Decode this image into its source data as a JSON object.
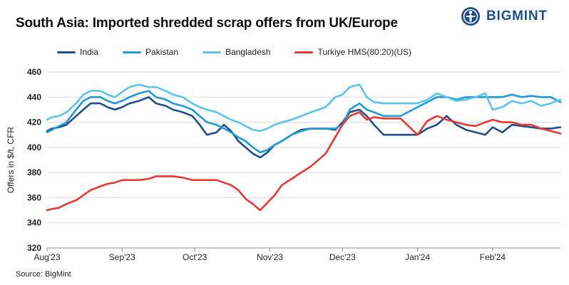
{
  "header": {
    "title": "South Asia: Imported shredded scrap offers from UK/Europe",
    "logo_text": "BIGMINT"
  },
  "footer": {
    "source": "Source: BigMint"
  },
  "colors": {
    "India": "#1f4e8c",
    "Pakistan": "#1f9bd6",
    "Bangladesh": "#5cc3ee",
    "Turkiye HMS(80:20)(US)": "#e53935",
    "brand": "#1f4e8c"
  },
  "chart_data": {
    "type": "line",
    "title": "South Asia: Imported shredded scrap offers from UK/Europe",
    "xlabel": "",
    "ylabel": "Offers in $/t, CFR",
    "ylim": [
      320,
      460
    ],
    "yticks": [
      320,
      340,
      360,
      380,
      400,
      420,
      440,
      460
    ],
    "xlim": [
      "2023-08-01",
      "2024-02-29"
    ],
    "xticks": [
      "Aug'23",
      "Sep'23",
      "Oct'23",
      "Nov'23",
      "Dec'23",
      "Jan'24",
      "Feb'24"
    ],
    "xtick_dates": [
      "2023-08-01",
      "2023-09-01",
      "2023-10-01",
      "2023-11-01",
      "2023-12-01",
      "2024-01-01",
      "2024-02-01"
    ],
    "grid": "horizontal",
    "legend": "top",
    "series": [
      {
        "name": "India",
        "color": "#1f4e8c",
        "points": [
          [
            "2023-08-01",
            413
          ],
          [
            "2023-08-03",
            415
          ],
          [
            "2023-08-06",
            416
          ],
          [
            "2023-08-09",
            418
          ],
          [
            "2023-08-13",
            425
          ],
          [
            "2023-08-16",
            430
          ],
          [
            "2023-08-19",
            435
          ],
          [
            "2023-08-23",
            435
          ],
          [
            "2023-08-26",
            432
          ],
          [
            "2023-08-29",
            430
          ],
          [
            "2023-09-01",
            432
          ],
          [
            "2023-09-04",
            435
          ],
          [
            "2023-09-08",
            437
          ],
          [
            "2023-09-12",
            440
          ],
          [
            "2023-09-15",
            435
          ],
          [
            "2023-09-19",
            433
          ],
          [
            "2023-09-22",
            430
          ],
          [
            "2023-09-26",
            428
          ],
          [
            "2023-09-30",
            425
          ],
          [
            "2023-10-03",
            418
          ],
          [
            "2023-10-06",
            410
          ],
          [
            "2023-10-10",
            412
          ],
          [
            "2023-10-13",
            418
          ],
          [
            "2023-10-16",
            413
          ],
          [
            "2023-10-19",
            405
          ],
          [
            "2023-10-22",
            400
          ],
          [
            "2023-10-25",
            395
          ],
          [
            "2023-10-28",
            392
          ],
          [
            "2023-10-31",
            396
          ],
          [
            "2023-11-03",
            402
          ],
          [
            "2023-11-06",
            405
          ],
          [
            "2023-11-10",
            410
          ],
          [
            "2023-11-14",
            414
          ],
          [
            "2023-11-18",
            415
          ],
          [
            "2023-11-24",
            415
          ],
          [
            "2023-11-28",
            414
          ],
          [
            "2023-12-01",
            420
          ],
          [
            "2023-12-04",
            428
          ],
          [
            "2023-12-08",
            430
          ],
          [
            "2023-12-11",
            425
          ],
          [
            "2023-12-14",
            418
          ],
          [
            "2023-12-18",
            410
          ],
          [
            "2023-12-25",
            410
          ],
          [
            "2024-01-01",
            410
          ],
          [
            "2024-01-05",
            415
          ],
          [
            "2024-01-09",
            418
          ],
          [
            "2024-01-13",
            425
          ],
          [
            "2024-01-17",
            418
          ],
          [
            "2024-01-21",
            414
          ],
          [
            "2024-01-25",
            412
          ],
          [
            "2024-01-29",
            410
          ],
          [
            "2024-02-01",
            416
          ],
          [
            "2024-02-05",
            412
          ],
          [
            "2024-02-09",
            418
          ],
          [
            "2024-02-13",
            417
          ],
          [
            "2024-02-17",
            416
          ],
          [
            "2024-02-21",
            415
          ],
          [
            "2024-02-25",
            415
          ],
          [
            "2024-02-29",
            416
          ]
        ]
      },
      {
        "name": "Pakistan",
        "color": "#1f9bd6",
        "points": [
          [
            "2023-08-01",
            412
          ],
          [
            "2023-08-03",
            414
          ],
          [
            "2023-08-06",
            417
          ],
          [
            "2023-08-09",
            420
          ],
          [
            "2023-08-13",
            430
          ],
          [
            "2023-08-16",
            437
          ],
          [
            "2023-08-19",
            440
          ],
          [
            "2023-08-23",
            440
          ],
          [
            "2023-08-26",
            437
          ],
          [
            "2023-08-29",
            435
          ],
          [
            "2023-09-01",
            437
          ],
          [
            "2023-09-04",
            440
          ],
          [
            "2023-09-08",
            443
          ],
          [
            "2023-09-12",
            445
          ],
          [
            "2023-09-15",
            440
          ],
          [
            "2023-09-19",
            438
          ],
          [
            "2023-09-22",
            435
          ],
          [
            "2023-09-26",
            433
          ],
          [
            "2023-09-30",
            430
          ],
          [
            "2023-10-03",
            425
          ],
          [
            "2023-10-06",
            420
          ],
          [
            "2023-10-10",
            418
          ],
          [
            "2023-10-13",
            415
          ],
          [
            "2023-10-16",
            412
          ],
          [
            "2023-10-19",
            408
          ],
          [
            "2023-10-22",
            405
          ],
          [
            "2023-10-25",
            400
          ],
          [
            "2023-10-28",
            396
          ],
          [
            "2023-10-31",
            398
          ],
          [
            "2023-11-03",
            402
          ],
          [
            "2023-11-06",
            405
          ],
          [
            "2023-11-10",
            410
          ],
          [
            "2023-11-14",
            413
          ],
          [
            "2023-11-18",
            415
          ],
          [
            "2023-11-24",
            415
          ],
          [
            "2023-11-28",
            415
          ],
          [
            "2023-12-01",
            418
          ],
          [
            "2023-12-04",
            430
          ],
          [
            "2023-12-08",
            435
          ],
          [
            "2023-12-11",
            430
          ],
          [
            "2023-12-14",
            428
          ],
          [
            "2023-12-18",
            425
          ],
          [
            "2023-12-25",
            425
          ],
          [
            "2024-01-01",
            432
          ],
          [
            "2024-01-05",
            436
          ],
          [
            "2024-01-09",
            440
          ],
          [
            "2024-01-13",
            440
          ],
          [
            "2024-01-17",
            438
          ],
          [
            "2024-01-21",
            440
          ],
          [
            "2024-01-25",
            440
          ],
          [
            "2024-01-29",
            440
          ],
          [
            "2024-02-01",
            440
          ],
          [
            "2024-02-05",
            440
          ],
          [
            "2024-02-09",
            442
          ],
          [
            "2024-02-13",
            440
          ],
          [
            "2024-02-17",
            441
          ],
          [
            "2024-02-21",
            440
          ],
          [
            "2024-02-25",
            440
          ],
          [
            "2024-02-29",
            436
          ]
        ]
      },
      {
        "name": "Bangladesh",
        "color": "#5cc3ee",
        "points": [
          [
            "2023-08-01",
            422
          ],
          [
            "2023-08-03",
            424
          ],
          [
            "2023-08-06",
            425
          ],
          [
            "2023-08-09",
            428
          ],
          [
            "2023-08-13",
            435
          ],
          [
            "2023-08-16",
            442
          ],
          [
            "2023-08-19",
            445
          ],
          [
            "2023-08-23",
            445
          ],
          [
            "2023-08-26",
            442
          ],
          [
            "2023-08-29",
            440
          ],
          [
            "2023-09-01",
            444
          ],
          [
            "2023-09-04",
            448
          ],
          [
            "2023-09-08",
            450
          ],
          [
            "2023-09-12",
            448
          ],
          [
            "2023-09-15",
            448
          ],
          [
            "2023-09-19",
            445
          ],
          [
            "2023-09-22",
            442
          ],
          [
            "2023-09-26",
            440
          ],
          [
            "2023-09-30",
            435
          ],
          [
            "2023-10-03",
            432
          ],
          [
            "2023-10-06",
            430
          ],
          [
            "2023-10-10",
            428
          ],
          [
            "2023-10-13",
            425
          ],
          [
            "2023-10-16",
            422
          ],
          [
            "2023-10-19",
            420
          ],
          [
            "2023-10-22",
            417
          ],
          [
            "2023-10-25",
            414
          ],
          [
            "2023-10-28",
            413
          ],
          [
            "2023-10-31",
            415
          ],
          [
            "2023-11-03",
            418
          ],
          [
            "2023-11-06",
            420
          ],
          [
            "2023-11-10",
            422
          ],
          [
            "2023-11-14",
            425
          ],
          [
            "2023-11-18",
            428
          ],
          [
            "2023-11-24",
            432
          ],
          [
            "2023-11-28",
            440
          ],
          [
            "2023-12-01",
            442
          ],
          [
            "2023-12-04",
            448
          ],
          [
            "2023-12-08",
            450
          ],
          [
            "2023-12-11",
            440
          ],
          [
            "2023-12-14",
            436
          ],
          [
            "2023-12-18",
            435
          ],
          [
            "2023-12-25",
            435
          ],
          [
            "2024-01-01",
            435
          ],
          [
            "2024-01-05",
            438
          ],
          [
            "2024-01-09",
            443
          ],
          [
            "2024-01-13",
            440
          ],
          [
            "2024-01-17",
            437
          ],
          [
            "2024-01-21",
            438
          ],
          [
            "2024-01-25",
            440
          ],
          [
            "2024-01-29",
            443
          ],
          [
            "2024-02-01",
            430
          ],
          [
            "2024-02-05",
            432
          ],
          [
            "2024-02-09",
            437
          ],
          [
            "2024-02-13",
            435
          ],
          [
            "2024-02-17",
            437
          ],
          [
            "2024-02-21",
            433
          ],
          [
            "2024-02-25",
            435
          ],
          [
            "2024-02-29",
            438
          ]
        ]
      },
      {
        "name": "Turkiye HMS(80:20)(US)",
        "color": "#e53935",
        "points": [
          [
            "2023-08-01",
            350
          ],
          [
            "2023-08-03",
            351
          ],
          [
            "2023-08-06",
            352
          ],
          [
            "2023-08-09",
            355
          ],
          [
            "2023-08-13",
            358
          ],
          [
            "2023-08-16",
            362
          ],
          [
            "2023-08-19",
            366
          ],
          [
            "2023-08-23",
            369
          ],
          [
            "2023-08-26",
            371
          ],
          [
            "2023-08-29",
            372
          ],
          [
            "2023-09-01",
            374
          ],
          [
            "2023-09-04",
            374
          ],
          [
            "2023-09-08",
            374
          ],
          [
            "2023-09-12",
            375
          ],
          [
            "2023-09-15",
            377
          ],
          [
            "2023-09-19",
            377
          ],
          [
            "2023-09-22",
            377
          ],
          [
            "2023-09-26",
            376
          ],
          [
            "2023-09-30",
            374
          ],
          [
            "2023-10-03",
            374
          ],
          [
            "2023-10-06",
            374
          ],
          [
            "2023-10-10",
            374
          ],
          [
            "2023-10-13",
            372
          ],
          [
            "2023-10-16",
            370
          ],
          [
            "2023-10-19",
            366
          ],
          [
            "2023-10-22",
            359
          ],
          [
            "2023-10-25",
            355
          ],
          [
            "2023-10-28",
            350
          ],
          [
            "2023-10-31",
            356
          ],
          [
            "2023-11-03",
            362
          ],
          [
            "2023-11-06",
            370
          ],
          [
            "2023-11-10",
            375
          ],
          [
            "2023-11-14",
            380
          ],
          [
            "2023-11-18",
            385
          ],
          [
            "2023-11-24",
            395
          ],
          [
            "2023-11-28",
            408
          ],
          [
            "2023-12-01",
            418
          ],
          [
            "2023-12-04",
            425
          ],
          [
            "2023-12-08",
            428
          ],
          [
            "2023-12-11",
            422
          ],
          [
            "2023-12-14",
            424
          ],
          [
            "2023-12-18",
            423
          ],
          [
            "2023-12-25",
            423
          ],
          [
            "2024-01-01",
            410
          ],
          [
            "2024-01-05",
            421
          ],
          [
            "2024-01-09",
            425
          ],
          [
            "2024-01-13",
            422
          ],
          [
            "2024-01-17",
            420
          ],
          [
            "2024-01-21",
            418
          ],
          [
            "2024-01-25",
            417
          ],
          [
            "2024-01-29",
            420
          ],
          [
            "2024-02-01",
            422
          ],
          [
            "2024-02-05",
            420
          ],
          [
            "2024-02-09",
            420
          ],
          [
            "2024-02-13",
            418
          ],
          [
            "2024-02-17",
            418
          ],
          [
            "2024-02-21",
            415
          ],
          [
            "2024-02-25",
            413
          ],
          [
            "2024-02-29",
            411
          ]
        ]
      }
    ]
  }
}
